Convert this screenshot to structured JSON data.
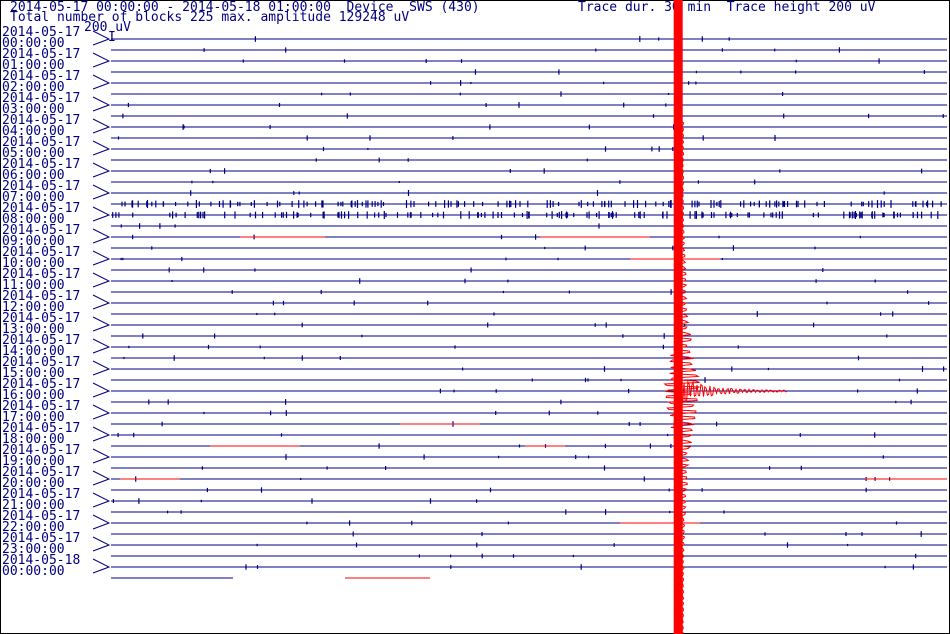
{
  "header": {
    "line1_left": "2014-05-17 00:00:00 - 2014-05-18 01:00:00  Device  SWS (430)",
    "line1_right": "Trace dur. 30 min  Trace height 200 uV",
    "line2": "Total number of blocks 225 max. amplitude 129248 uV",
    "scale_label": "200 uV",
    "scale_marker": "I"
  },
  "chart_data": {
    "type": "line",
    "title": "2014-05-17 00:00:00 - 2014-05-18 01:00:00  Device  SWS (430)",
    "subtitle": "Total number of blocks 225 max. amplitude 129248 uV",
    "trace_duration": "30 min",
    "trace_height": "200 uV",
    "max_amplitude_uV": 129248,
    "total_blocks": 225,
    "time_labels": [
      {
        "date": "2014-05-17",
        "time": "00:00:00"
      },
      {
        "date": "2014-05-17",
        "time": "01:00:00"
      },
      {
        "date": "2014-05-17",
        "time": "02:00:00"
      },
      {
        "date": "2014-05-17",
        "time": "03:00:00"
      },
      {
        "date": "2014-05-17",
        "time": "04:00:00"
      },
      {
        "date": "2014-05-17",
        "time": "05:00:00"
      },
      {
        "date": "2014-05-17",
        "time": "06:00:00"
      },
      {
        "date": "2014-05-17",
        "time": "07:00:00"
      },
      {
        "date": "2014-05-17",
        "time": "08:00:00"
      },
      {
        "date": "2014-05-17",
        "time": "09:00:00"
      },
      {
        "date": "2014-05-17",
        "time": "10:00:00"
      },
      {
        "date": "2014-05-17",
        "time": "11:00:00"
      },
      {
        "date": "2014-05-17",
        "time": "12:00:00"
      },
      {
        "date": "2014-05-17",
        "time": "13:00:00"
      },
      {
        "date": "2014-05-17",
        "time": "14:00:00"
      },
      {
        "date": "2014-05-17",
        "time": "15:00:00"
      },
      {
        "date": "2014-05-17",
        "time": "16:00:00"
      },
      {
        "date": "2014-05-17",
        "time": "17:00:00"
      },
      {
        "date": "2014-05-17",
        "time": "18:00:00"
      },
      {
        "date": "2014-05-17",
        "time": "19:00:00"
      },
      {
        "date": "2014-05-17",
        "time": "20:00:00"
      },
      {
        "date": "2014-05-17",
        "time": "21:00:00"
      },
      {
        "date": "2014-05-17",
        "time": "22:00:00"
      },
      {
        "date": "2014-05-17",
        "time": "23:00:00"
      },
      {
        "date": "2014-05-18",
        "time": "00:00:00"
      }
    ],
    "traces_per_hour": 2,
    "event": {
      "trace_index": 32,
      "minute_in_trace": 20.3
    }
  },
  "colors": {
    "trace": "#000080",
    "event": "#ff0000",
    "text": "#000080",
    "background": "#ffffff"
  }
}
